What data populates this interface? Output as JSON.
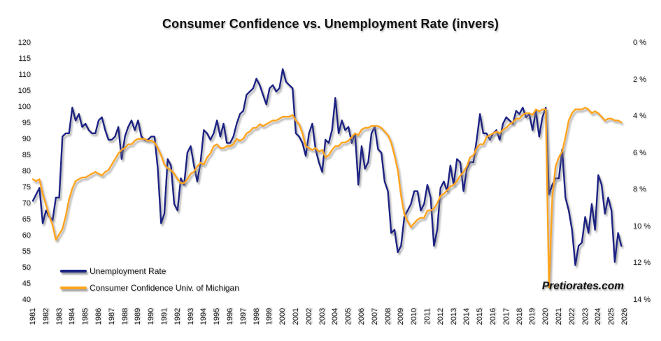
{
  "title": "Consumer Confidence vs. Unemployment Rate (invers)",
  "watermark": "Pretiorates.com",
  "colors": {
    "navy": "#1b2383",
    "orange": "#FFA41D",
    "shadow": "#8a8a8a",
    "background": "#ffffff"
  },
  "legend": [
    {
      "label": "Unemployment Rate",
      "color": "#1b2383"
    },
    {
      "label": "Consumer Confidence Univ. of Michigan",
      "color": "#FFA41D"
    }
  ],
  "chart_data": {
    "type": "line",
    "title": "Consumer Confidence vs. Unemployment Rate (invers)",
    "grid": false,
    "legend_position": "bottom-left",
    "x_axis": {
      "labels": [
        "1981",
        "1982",
        "1983",
        "1984",
        "1985",
        "1986",
        "1987",
        "1988",
        "1989",
        "1990",
        "1991",
        "1992",
        "1993",
        "1994",
        "1995",
        "1996",
        "1997",
        "1998",
        "1999",
        "2000",
        "2001",
        "2002",
        "2003",
        "2004",
        "2005",
        "2006",
        "2007",
        "2008",
        "2009",
        "2010",
        "2011",
        "2012",
        "2013",
        "2014",
        "2015",
        "2016",
        "2017",
        "2018",
        "2019",
        "2020",
        "2021",
        "2022",
        "2023",
        "2024",
        "2025",
        "2026"
      ],
      "range": [
        1981,
        2026
      ],
      "label_rotation_deg": -90
    },
    "left_axis": {
      "min": 40,
      "max": 120,
      "tick_labels": [
        "120",
        "115",
        "110",
        "105",
        "100",
        "95",
        "90",
        "85",
        "80",
        "75",
        "70",
        "65",
        "60",
        "55",
        "50",
        "45",
        "40"
      ]
    },
    "right_axis": {
      "min": 0,
      "max": 14,
      "inverted": true,
      "unit": "%",
      "tick_labels": [
        "0 %",
        "2 %",
        "4 %",
        "6 %",
        "8 %",
        "10 %",
        "12 %",
        "14 %"
      ]
    },
    "series": [
      {
        "name": "Unemployment Rate",
        "color": "#1b2383",
        "axis": "left",
        "start_year": 1981,
        "step_years": 0.25,
        "values": [
          71,
          73,
          75,
          64,
          68,
          66,
          65,
          72,
          72,
          91,
          92,
          92,
          100,
          96,
          98,
          94,
          95,
          93,
          92,
          92,
          96,
          97,
          93,
          90,
          90,
          91,
          94,
          84,
          91,
          94,
          96,
          93,
          96,
          91,
          90,
          90,
          91,
          91,
          81,
          64,
          67,
          84,
          82,
          70,
          68,
          78,
          76,
          86,
          88,
          82,
          77,
          83,
          93,
          92,
          90,
          92,
          96,
          91,
          95,
          89,
          89,
          91,
          95,
          98,
          99,
          104,
          105,
          106,
          109,
          107,
          104,
          101,
          106,
          107,
          105,
          106,
          112,
          108,
          107,
          106,
          92,
          91,
          89,
          85,
          92,
          95,
          87,
          83,
          80,
          90,
          89,
          93,
          103,
          92,
          96,
          93,
          94,
          89,
          92,
          76,
          88,
          81,
          83,
          92,
          94,
          87,
          86,
          77,
          74,
          61,
          62,
          55,
          57,
          66,
          68,
          70,
          74,
          74,
          68,
          70,
          76,
          72,
          57,
          62,
          75,
          77,
          74,
          82,
          76,
          84,
          83,
          74,
          81,
          83,
          83,
          90,
          98,
          92,
          92,
          90,
          92,
          93,
          90,
          95,
          97,
          96,
          95,
          99,
          98,
          100,
          97,
          98,
          93,
          99,
          91,
          97,
          100,
          73,
          76,
          78,
          78,
          87,
          72,
          68,
          62,
          51,
          57,
          58,
          66,
          61,
          70,
          62,
          79,
          76,
          67,
          72,
          68,
          52,
          61,
          57
        ]
      },
      {
        "name": "Consumer Confidence Univ. of Michigan",
        "color": "#FFA41D",
        "axis": "right",
        "start_year": 1981,
        "step_years": 0.25,
        "values": [
          7.4,
          7.5,
          7.4,
          8.2,
          8.8,
          9.4,
          9.9,
          10.7,
          10.4,
          10.1,
          9.4,
          8.5,
          7.9,
          7.5,
          7.4,
          7.3,
          7.3,
          7.2,
          7.1,
          7.0,
          7.1,
          7.2,
          7.0,
          6.9,
          6.6,
          6.3,
          6.0,
          5.8,
          5.7,
          5.5,
          5.5,
          5.3,
          5.2,
          5.2,
          5.2,
          5.3,
          5.3,
          5.4,
          5.7,
          6.1,
          6.6,
          6.8,
          6.9,
          7.1,
          7.4,
          7.6,
          7.6,
          7.4,
          7.1,
          7.0,
          6.7,
          6.5,
          6.6,
          6.2,
          6.0,
          5.6,
          5.5,
          5.7,
          5.7,
          5.6,
          5.6,
          5.5,
          5.2,
          5.3,
          5.2,
          4.9,
          4.8,
          4.6,
          4.6,
          4.4,
          4.5,
          4.4,
          4.3,
          4.2,
          4.2,
          4.1,
          4.0,
          4.0,
          4.0,
          3.9,
          4.2,
          4.4,
          4.9,
          5.6,
          5.7,
          5.8,
          5.7,
          5.9,
          5.8,
          6.2,
          6.1,
          5.8,
          5.6,
          5.6,
          5.4,
          5.4,
          5.3,
          5.1,
          4.9,
          5.0,
          4.7,
          4.6,
          4.6,
          4.5,
          4.5,
          4.5,
          4.6,
          4.8,
          5.0,
          5.4,
          6.1,
          6.9,
          8.3,
          9.3,
          9.7,
          10.0,
          9.8,
          9.6,
          9.5,
          9.5,
          9.1,
          9.1,
          9.0,
          8.7,
          8.3,
          8.2,
          8.0,
          7.8,
          7.7,
          7.5,
          7.2,
          7.0,
          6.7,
          6.2,
          6.1,
          5.7,
          5.5,
          5.5,
          5.1,
          5.0,
          4.9,
          4.8,
          4.9,
          4.7,
          4.6,
          4.4,
          4.3,
          4.1,
          4.1,
          3.9,
          3.8,
          3.8,
          3.9,
          3.6,
          3.7,
          3.6,
          3.6,
          13.3,
          8.4,
          6.7,
          6.2,
          5.9,
          5.1,
          4.2,
          3.8,
          3.6,
          3.6,
          3.6,
          3.5,
          3.6,
          3.8,
          3.7,
          3.8,
          4.0,
          4.2,
          4.1,
          4.1,
          4.2,
          4.2,
          4.3
        ]
      }
    ]
  }
}
